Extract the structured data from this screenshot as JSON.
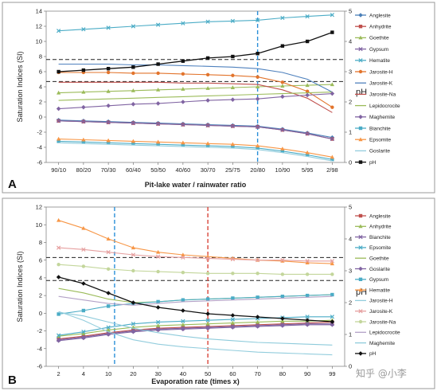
{
  "chart_data": [
    {
      "type": "line",
      "panel_label": "A",
      "xlabel": "Pit-lake water /  rainwater ratio",
      "ylabel": "Saturation Indices (SI)",
      "y2label": "pH",
      "categories": [
        "90/10",
        "80/20",
        "70/30",
        "60/40",
        "50/50",
        "40/60",
        "30/70",
        "25/75",
        "20/80",
        "10/90",
        "5/95",
        "2/98"
      ],
      "ylim": [
        -6,
        14
      ],
      "y_ticks": [
        "-6",
        "-4",
        "-2",
        "0",
        "2",
        "4",
        "6",
        "8",
        "10",
        "12",
        "14"
      ],
      "y2lim": [
        0,
        5
      ],
      "y2_ticks": [
        "0",
        "1",
        "2",
        "3",
        "4",
        "5"
      ],
      "ref_hlines": [
        7.6,
        4.7
      ],
      "ref_vlines": [
        {
          "category": "20/80",
          "color": "#2a8fd8"
        }
      ],
      "legend_position": "right",
      "series": [
        {
          "name": "Anglesite",
          "color": "#4a7fb8",
          "marker": "diamond",
          "values": [
            -0.4,
            -0.5,
            -0.6,
            -0.7,
            -0.8,
            -0.9,
            -1.0,
            -1.1,
            -1.2,
            -1.6,
            -2.1,
            -2.7
          ]
        },
        {
          "name": "Anhydrite",
          "color": "#c0504d",
          "marker": "square",
          "values": [
            -0.5,
            -0.6,
            -0.7,
            -0.8,
            -0.9,
            -1.0,
            -1.1,
            -1.2,
            -1.3,
            -1.7,
            -2.2,
            -2.9
          ]
        },
        {
          "name": "Goethite",
          "color": "#9bbb59",
          "marker": "triangle",
          "values": [
            3.2,
            3.3,
            3.4,
            3.5,
            3.6,
            3.7,
            3.8,
            3.9,
            4.0,
            4.1,
            4.2,
            4.3
          ]
        },
        {
          "name": "Gypsum",
          "color": "#8064a2",
          "marker": "x",
          "values": [
            -0.5,
            -0.6,
            -0.7,
            -0.8,
            -0.9,
            -1.0,
            -1.1,
            -1.2,
            -1.3,
            -1.7,
            -2.2,
            -2.9
          ]
        },
        {
          "name": "Hematite",
          "color": "#4bacc6",
          "marker": "x",
          "values": [
            11.4,
            11.6,
            11.8,
            12.0,
            12.2,
            12.4,
            12.6,
            12.7,
            12.8,
            13.1,
            13.3,
            13.5
          ]
        },
        {
          "name": "Jarosite-H",
          "color": "#e2742c",
          "marker": "circle",
          "values": [
            5.9,
            5.9,
            5.9,
            5.8,
            5.8,
            5.7,
            5.6,
            5.5,
            5.3,
            4.6,
            3.4,
            1.3
          ]
        },
        {
          "name": "Jarosite-K",
          "color": "#4f81bd",
          "marker": "line",
          "values": [
            7.0,
            7.0,
            7.0,
            6.9,
            6.9,
            6.8,
            6.7,
            6.6,
            6.4,
            5.9,
            5.0,
            3.3
          ]
        },
        {
          "name": "Jarosite-Na",
          "color": "#c0504d",
          "marker": "line",
          "values": [
            4.6,
            4.6,
            4.6,
            4.6,
            4.6,
            4.5,
            4.5,
            4.4,
            4.3,
            3.6,
            2.5,
            0.6
          ]
        },
        {
          "name": "Lepidocrocite",
          "color": "#9bbb59",
          "marker": "line",
          "values": [
            2.2,
            2.3,
            2.4,
            2.5,
            2.6,
            2.7,
            2.8,
            2.9,
            3.0,
            3.1,
            3.2,
            3.3
          ]
        },
        {
          "name": "Maghemite",
          "color": "#8064a2",
          "marker": "diamond",
          "values": [
            1.1,
            1.3,
            1.5,
            1.7,
            1.8,
            2.0,
            2.2,
            2.3,
            2.4,
            2.7,
            2.9,
            3.1
          ]
        },
        {
          "name": "Bianchite",
          "color": "#4bacc6",
          "marker": "square",
          "values": [
            -3.2,
            -3.3,
            -3.4,
            -3.5,
            -3.6,
            -3.7,
            -3.8,
            -3.9,
            -4.1,
            -4.5,
            -5.0,
            -5.6
          ]
        },
        {
          "name": "Epsomite",
          "color": "#f79646",
          "marker": "triangle",
          "values": [
            -2.9,
            -3.0,
            -3.1,
            -3.2,
            -3.3,
            -3.4,
            -3.5,
            -3.6,
            -3.8,
            -4.2,
            -4.7,
            -5.3
          ]
        },
        {
          "name": "Goslarite",
          "color": "#93cddd",
          "marker": "line",
          "values": [
            -3.4,
            -3.5,
            -3.6,
            -3.7,
            -3.8,
            -3.9,
            -4.0,
            -4.1,
            -4.3,
            -4.7,
            -5.2,
            -5.8
          ]
        },
        {
          "name": "pH",
          "color": "#111111",
          "marker": "square",
          "axis": "y2",
          "values": [
            3.0,
            3.05,
            3.1,
            3.15,
            3.25,
            3.35,
            3.45,
            3.5,
            3.6,
            3.85,
            4.0,
            4.3
          ]
        }
      ]
    },
    {
      "type": "line",
      "panel_label": "B",
      "xlabel": "Evaporation rate (times x)",
      "ylabel": "Saturation Indices (SI)",
      "y2label": "pH",
      "categories": [
        "2",
        "4",
        "10",
        "20",
        "30",
        "40",
        "50",
        "60",
        "70",
        "80",
        "90",
        "99"
      ],
      "ylim": [
        -6,
        12
      ],
      "y_ticks": [
        "-6",
        "-4",
        "-2",
        "0",
        "2",
        "4",
        "6",
        "8",
        "10",
        "12"
      ],
      "y2lim": [
        0,
        5
      ],
      "y2_ticks": [
        "0",
        "1",
        "2",
        "3",
        "4",
        "5"
      ],
      "ref_hlines": [
        6.3,
        3.7
      ],
      "ref_vlines": [
        {
          "category": 12.5,
          "color": "#2a8fd8"
        },
        {
          "category": 50,
          "color": "#d9453a"
        }
      ],
      "legend_position": "right",
      "series": [
        {
          "name": "Anglesite",
          "color": "#c0504d",
          "marker": "square",
          "values": [
            -2.9,
            -2.6,
            -2.2,
            -1.9,
            -1.7,
            -1.6,
            -1.5,
            -1.4,
            -1.3,
            -1.2,
            -1.1,
            -1.0
          ]
        },
        {
          "name": "Anhydrite",
          "color": "#9bbb59",
          "marker": "triangle",
          "values": [
            -2.6,
            -2.3,
            -1.9,
            -1.6,
            -1.4,
            -1.3,
            -1.2,
            -1.1,
            -1.0,
            -0.9,
            -0.9,
            -0.8
          ]
        },
        {
          "name": "Bianchite",
          "color": "#8064a2",
          "marker": "x",
          "values": [
            -3.0,
            -2.7,
            -2.3,
            -2.0,
            -1.8,
            -1.7,
            -1.6,
            -1.5,
            -1.4,
            -1.3,
            -1.2,
            -1.2
          ]
        },
        {
          "name": "Epsomite",
          "color": "#4bacc6",
          "marker": "x",
          "values": [
            -2.5,
            -2.1,
            -1.6,
            -1.2,
            -1.0,
            -0.9,
            -0.8,
            -0.7,
            -0.6,
            -0.5,
            -0.4,
            -0.4
          ]
        },
        {
          "name": "Goethite",
          "color": "#9bbb59",
          "marker": "line",
          "values": [
            2.8,
            2.3,
            1.6,
            1.2,
            1.3,
            1.5,
            1.6,
            1.7,
            1.8,
            1.9,
            2.0,
            2.1
          ]
        },
        {
          "name": "Goslarite",
          "color": "#8064a2",
          "marker": "diamond",
          "values": [
            -3.1,
            -2.8,
            -2.4,
            -2.1,
            -1.9,
            -1.8,
            -1.7,
            -1.6,
            -1.5,
            -1.4,
            -1.3,
            -1.3
          ]
        },
        {
          "name": "Gypsum",
          "color": "#4bacc6",
          "marker": "square",
          "values": [
            -0.1,
            0.3,
            0.8,
            1.1,
            1.3,
            1.5,
            1.6,
            1.7,
            1.8,
            1.9,
            2.0,
            2.1
          ]
        },
        {
          "name": "Hematite",
          "color": "#f79646",
          "marker": "triangle",
          "values": [
            10.5,
            9.6,
            8.4,
            7.4,
            6.9,
            6.6,
            6.4,
            6.2,
            6.0,
            5.9,
            5.7,
            5.6
          ]
        },
        {
          "name": "Jarosite-H",
          "color": "#93cddd",
          "marker": "line",
          "values": [
            0.2,
            -0.8,
            -2.1,
            -3.0,
            -3.5,
            -3.8,
            -4.0,
            -4.2,
            -4.4,
            -4.5,
            -4.6,
            -4.7
          ]
        },
        {
          "name": "Jarosite-K",
          "color": "#e6a0a0",
          "marker": "x",
          "values": [
            7.4,
            7.2,
            6.9,
            6.6,
            6.4,
            6.3,
            6.2,
            6.1,
            6.0,
            6.0,
            5.9,
            5.9
          ]
        },
        {
          "name": "Jarosite-Na",
          "color": "#c3d69b",
          "marker": "circle",
          "values": [
            5.5,
            5.3,
            5.0,
            4.8,
            4.7,
            4.6,
            4.5,
            4.5,
            4.5,
            4.4,
            4.4,
            4.4
          ]
        },
        {
          "name": "Lepidocrocite",
          "color": "#b3a2c7",
          "marker": "line",
          "values": [
            1.9,
            1.5,
            1.1,
            0.9,
            1.1,
            1.3,
            1.4,
            1.5,
            1.6,
            1.7,
            1.8,
            1.9
          ]
        },
        {
          "name": "Maghemite",
          "color": "#8ecbdb",
          "marker": "line",
          "values": [
            0.1,
            -0.3,
            -1.0,
            -1.7,
            -2.2,
            -2.6,
            -2.9,
            -3.1,
            -3.3,
            -3.4,
            -3.5,
            -3.6
          ]
        },
        {
          "name": "pH",
          "color": "#111111",
          "marker": "diamond",
          "axis": "y2",
          "values": [
            2.8,
            2.6,
            2.3,
            2.0,
            1.85,
            1.75,
            1.65,
            1.6,
            1.55,
            1.5,
            1.45,
            1.4
          ]
        }
      ]
    }
  ],
  "watermark": "知乎 @小李"
}
